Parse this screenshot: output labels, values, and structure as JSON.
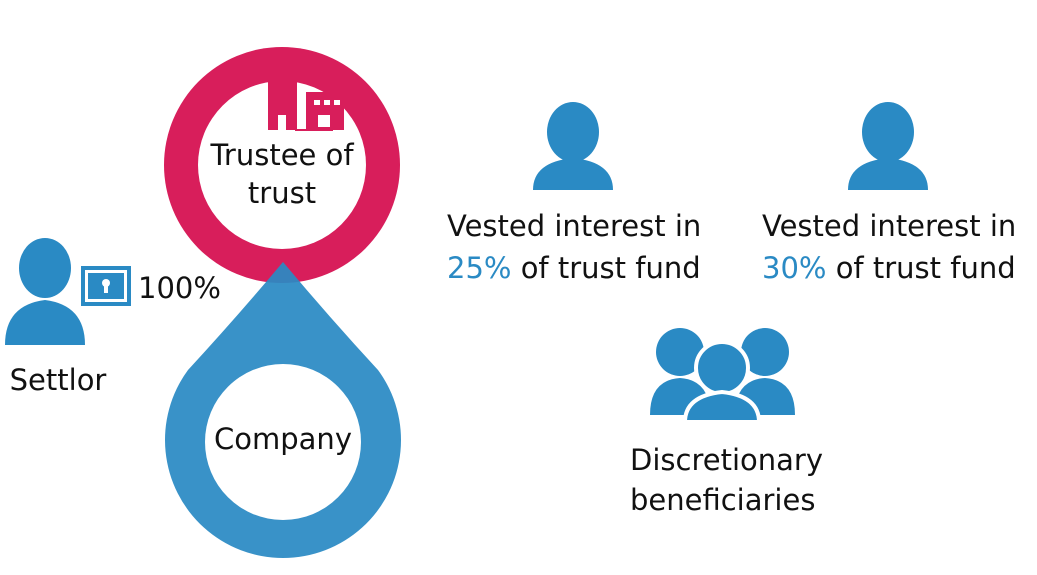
{
  "trustee": {
    "label_lines": [
      "Trustee of",
      "trust"
    ]
  },
  "company": {
    "label": "Company"
  },
  "settlor": {
    "label": "Settlor",
    "ownership": "100%"
  },
  "vested_beneficiaries": [
    {
      "line1": "Vested interest in",
      "share": "25%",
      "rest": "of trust fund"
    },
    {
      "line1": "Vested interest in",
      "share": "30%",
      "rest": "of trust fund"
    }
  ],
  "discretionary": {
    "label_lines": [
      "Discretionary",
      "beneficiaries"
    ]
  }
}
